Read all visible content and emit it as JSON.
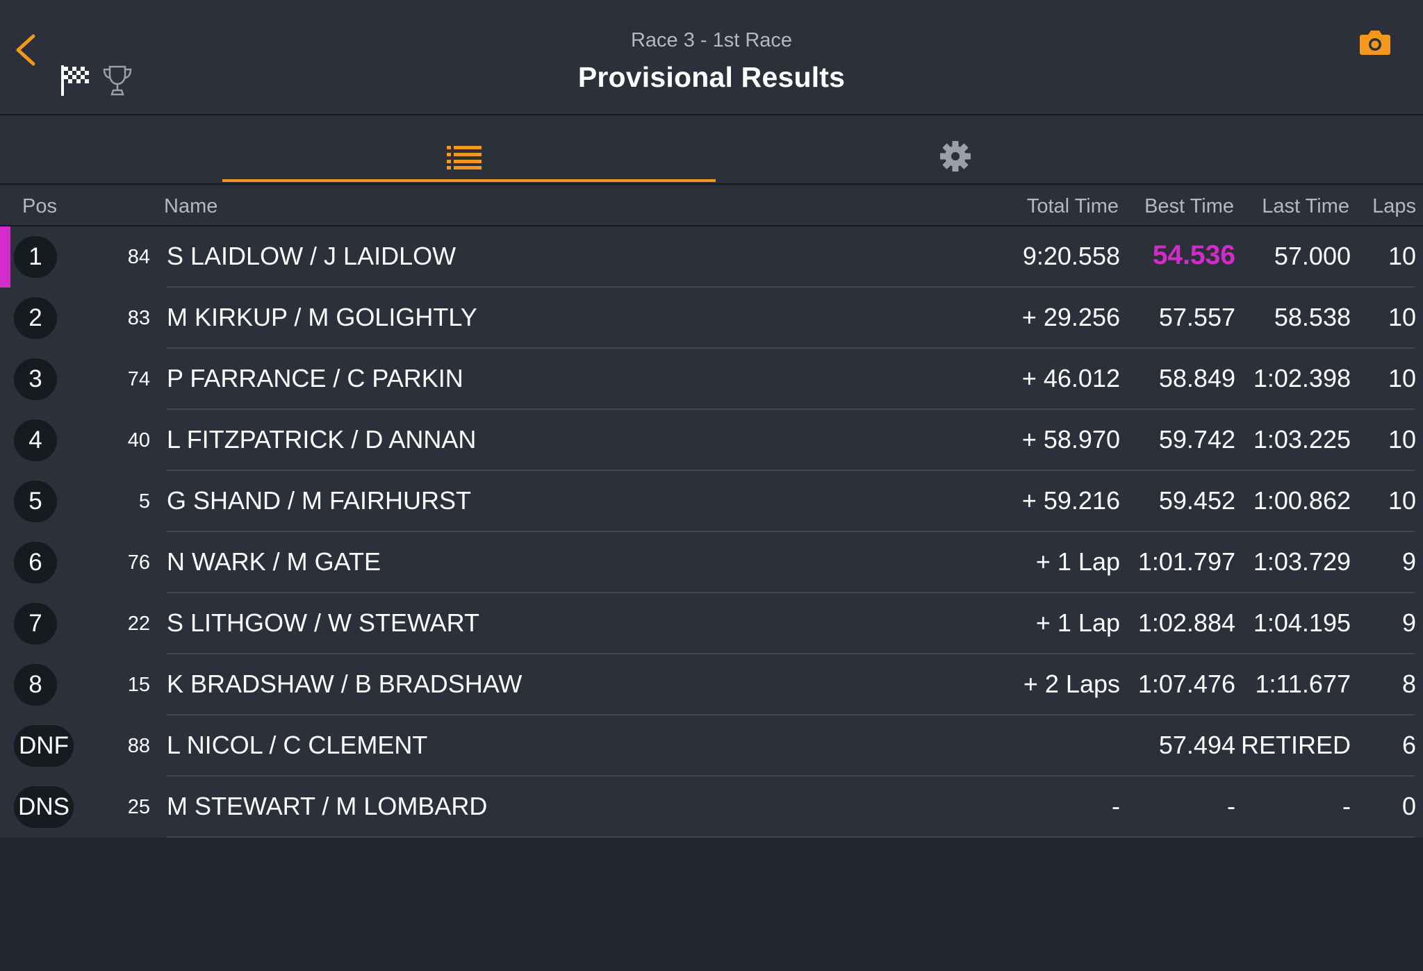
{
  "header": {
    "subtitle": "Race 3 - 1st Race",
    "title": "Provisional Results",
    "icons": [
      "back-chevron-icon",
      "checkered-flag-icon",
      "trophy-icon",
      "camera-icon"
    ]
  },
  "tabs": [
    {
      "name": "results-list",
      "icon": "list-icon",
      "active": true
    },
    {
      "name": "settings",
      "icon": "gear-icon",
      "active": false
    }
  ],
  "colors": {
    "accent": "#f5961e",
    "fastest": "#d42ccb",
    "background": "#21262e",
    "row": "#2b303a"
  },
  "columns": {
    "pos": "Pos",
    "name": "Name",
    "total": "Total Time",
    "best": "Best Time",
    "last": "Last Time",
    "laps": "Laps"
  },
  "rows": [
    {
      "pos": "1",
      "num": "84",
      "name": "S LAIDLOW / J LAIDLOW",
      "total": "9:20.558",
      "best": "54.536",
      "last": "57.000",
      "laps": "10"
    },
    {
      "pos": "2",
      "num": "83",
      "name": "M KIRKUP / M GOLIGHTLY",
      "total": "+ 29.256",
      "best": "57.557",
      "last": "58.538",
      "laps": "10"
    },
    {
      "pos": "3",
      "num": "74",
      "name": "P FARRANCE / C PARKIN",
      "total": "+ 46.012",
      "best": "58.849",
      "last": "1:02.398",
      "laps": "10"
    },
    {
      "pos": "4",
      "num": "40",
      "name": "L FITZPATRICK / D ANNAN",
      "total": "+ 58.970",
      "best": "59.742",
      "last": "1:03.225",
      "laps": "10"
    },
    {
      "pos": "5",
      "num": "5",
      "name": "G SHAND / M FAIRHURST",
      "total": "+ 59.216",
      "best": "59.452",
      "last": "1:00.862",
      "laps": "10"
    },
    {
      "pos": "6",
      "num": "76",
      "name": "N WARK / M GATE",
      "total": "+ 1 Lap",
      "best": "1:01.797",
      "last": "1:03.729",
      "laps": "9"
    },
    {
      "pos": "7",
      "num": "22",
      "name": "S LITHGOW / W STEWART",
      "total": "+ 1 Lap",
      "best": "1:02.884",
      "last": "1:04.195",
      "laps": "9"
    },
    {
      "pos": "8",
      "num": "15",
      "name": "K BRADSHAW / B BRADSHAW",
      "total": "+ 2 Laps",
      "best": "1:07.476",
      "last": "1:11.677",
      "laps": "8"
    },
    {
      "pos": "DNF",
      "num": "88",
      "name": "L NICOL / C CLEMENT",
      "total": "",
      "best": "57.494",
      "last": "RETIRED",
      "laps": "6"
    },
    {
      "pos": "DNS",
      "num": "25",
      "name": "M STEWART / M LOMBARD",
      "total": "-",
      "best": "-",
      "last": "-",
      "laps": "0"
    }
  ]
}
